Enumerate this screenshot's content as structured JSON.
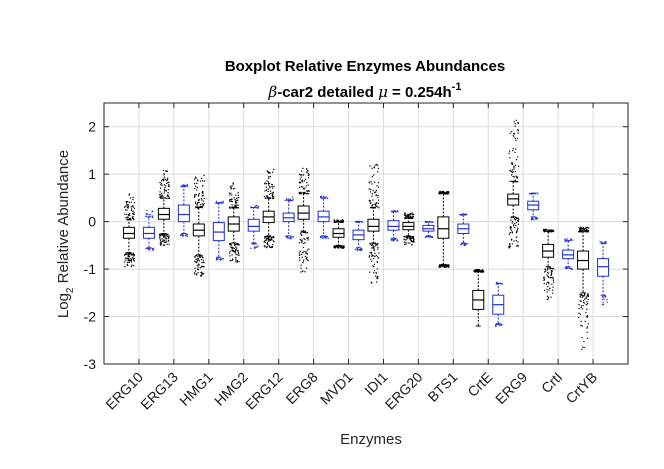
{
  "chart_data": {
    "type": "boxplot",
    "title": "Boxplot Relative Enzymes Abundances",
    "subtitle": {
      "prefix_symbol": "β",
      "prefix_text": "-car2 detailed ",
      "mu_symbol": "μ",
      "equals_text": " = 0.254h",
      "exponent_text": "-1"
    },
    "xlabel": "Enzymes",
    "ylabel": {
      "base": "Log",
      "subscript": "2",
      "rest": " Relative Abundance"
    },
    "ylim": [
      -3,
      2.5
    ],
    "yticks": [
      -3,
      -2,
      -1,
      0,
      1,
      2
    ],
    "ytick_labels": [
      "-3",
      "-2",
      "-1",
      "0",
      "1",
      "2"
    ],
    "grid": true,
    "categories": [
      "ERG10",
      "ERG13",
      "HMG1",
      "HMG2",
      "ERG12",
      "ERG8",
      "MVD1",
      "IDI1",
      "ERG20",
      "BTS1",
      "CrtE",
      "ERG9",
      "CrtI",
      "CrtYB"
    ],
    "series": [
      {
        "color": "#000000",
        "boxes": [
          {
            "whisker_low": -0.65,
            "q1": -0.35,
            "median": -0.25,
            "q3": -0.12,
            "whisker_high": 0.05,
            "outliers_low": -0.95,
            "outliers_high": 0.6
          },
          {
            "whisker_low": -0.25,
            "q1": 0.05,
            "median": 0.15,
            "q3": 0.28,
            "whisker_high": 0.5,
            "outliers_low": -0.5,
            "outliers_high": 1.1
          },
          {
            "whisker_low": -0.7,
            "q1": -0.3,
            "median": -0.18,
            "q3": -0.05,
            "whisker_high": 0.3,
            "outliers_low": -1.15,
            "outliers_high": 1.0
          },
          {
            "whisker_low": -0.45,
            "q1": -0.2,
            "median": -0.05,
            "q3": 0.1,
            "whisker_high": 0.3,
            "outliers_low": -0.85,
            "outliers_high": 0.85
          },
          {
            "whisker_low": -0.3,
            "q1": -0.02,
            "median": 0.1,
            "q3": 0.22,
            "whisker_high": 0.5,
            "outliers_low": -0.55,
            "outliers_high": 1.15
          },
          {
            "whisker_low": -0.2,
            "q1": 0.05,
            "median": 0.18,
            "q3": 0.33,
            "whisker_high": 0.6,
            "outliers_low": -1.05,
            "outliers_high": 1.15
          },
          {
            "whisker_low": -0.5,
            "q1": -0.33,
            "median": -0.25,
            "q3": -0.15,
            "whisker_high": 0.0,
            "outliers_low": -0.55,
            "outliers_high": 0.05
          },
          {
            "whisker_low": -0.45,
            "q1": -0.2,
            "median": -0.1,
            "q3": 0.05,
            "whisker_high": 0.3,
            "outliers_low": -1.3,
            "outliers_high": 1.25
          },
          {
            "whisker_low": -0.3,
            "q1": -0.17,
            "median": -0.1,
            "q3": -0.02,
            "whisker_high": 0.08,
            "outliers_low": -0.48,
            "outliers_high": 0.2
          },
          {
            "whisker_low": -0.9,
            "q1": -0.35,
            "median": -0.15,
            "q3": 0.1,
            "whisker_high": 0.6,
            "outliers_low": -0.95,
            "outliers_high": 0.65
          },
          {
            "whisker_low": -2.2,
            "q1": -1.85,
            "median": -1.65,
            "q3": -1.45,
            "whisker_high": -1.05,
            "outliers_low": -2.2,
            "outliers_high": -1.0
          },
          {
            "whisker_low": 0.1,
            "q1": 0.35,
            "median": 0.48,
            "q3": 0.58,
            "whisker_high": 0.85,
            "outliers_low": -0.55,
            "outliers_high": 2.2
          },
          {
            "whisker_low": -0.95,
            "q1": -0.75,
            "median": -0.62,
            "q3": -0.48,
            "whisker_high": -0.2,
            "outliers_low": -1.65,
            "outliers_high": -0.15
          },
          {
            "whisker_low": -1.5,
            "q1": -1.0,
            "median": -0.82,
            "q3": -0.62,
            "whisker_high": -0.2,
            "outliers_low": -2.75,
            "outliers_high": -0.1
          }
        ]
      },
      {
        "color": "#1f2fd4",
        "boxes": [
          {
            "whisker_low": -0.55,
            "q1": -0.35,
            "median": -0.25,
            "q3": -0.12,
            "whisker_high": 0.1,
            "outliers_low": -0.6,
            "outliers_high": 0.25
          },
          {
            "whisker_low": -0.25,
            "q1": 0.0,
            "median": 0.15,
            "q3": 0.35,
            "whisker_high": 0.75,
            "outliers_low": -0.3,
            "outliers_high": 0.8
          },
          {
            "whisker_low": -0.75,
            "q1": -0.4,
            "median": -0.22,
            "q3": -0.02,
            "whisker_high": 0.4,
            "outliers_low": -0.8,
            "outliers_high": 0.45
          },
          {
            "whisker_low": -0.45,
            "q1": -0.2,
            "median": -0.1,
            "q3": 0.05,
            "whisker_high": 0.3,
            "outliers_low": -0.55,
            "outliers_high": 0.35
          },
          {
            "whisker_low": -0.3,
            "q1": 0.0,
            "median": 0.08,
            "q3": 0.18,
            "whisker_high": 0.45,
            "outliers_low": -0.35,
            "outliers_high": 0.55
          },
          {
            "whisker_low": -0.3,
            "q1": 0.0,
            "median": 0.1,
            "q3": 0.22,
            "whisker_high": 0.5,
            "outliers_low": -0.35,
            "outliers_high": 0.55
          },
          {
            "whisker_low": -0.55,
            "q1": -0.38,
            "median": -0.28,
            "q3": -0.18,
            "whisker_high": 0.0,
            "outliers_low": -0.6,
            "outliers_high": 0.02
          },
          {
            "whisker_low": -0.35,
            "q1": -0.18,
            "median": -0.1,
            "q3": 0.02,
            "whisker_high": 0.22,
            "outliers_low": -0.4,
            "outliers_high": 0.25
          },
          {
            "whisker_low": -0.3,
            "q1": -0.2,
            "median": -0.15,
            "q3": -0.08,
            "whisker_high": 0.0,
            "outliers_low": -0.32,
            "outliers_high": 0.02
          },
          {
            "whisker_low": -0.45,
            "q1": -0.25,
            "median": -0.15,
            "q3": -0.05,
            "whisker_high": 0.15,
            "outliers_low": -0.5,
            "outliers_high": 0.18
          },
          {
            "whisker_low": -2.15,
            "q1": -1.95,
            "median": -1.75,
            "q3": -1.55,
            "whisker_high": -1.3,
            "outliers_low": -2.2,
            "outliers_high": -1.25
          },
          {
            "whisker_low": 0.1,
            "q1": 0.25,
            "median": 0.35,
            "q3": 0.43,
            "whisker_high": 0.6,
            "outliers_low": 0.05,
            "outliers_high": 0.62
          },
          {
            "whisker_low": -0.95,
            "q1": -0.78,
            "median": -0.7,
            "q3": -0.6,
            "whisker_high": -0.4,
            "outliers_low": -1.0,
            "outliers_high": -0.35
          },
          {
            "whisker_low": -1.55,
            "q1": -1.15,
            "median": -0.95,
            "q3": -0.78,
            "whisker_high": -0.45,
            "outliers_low": -1.75,
            "outliers_high": -0.4
          }
        ]
      }
    ]
  }
}
